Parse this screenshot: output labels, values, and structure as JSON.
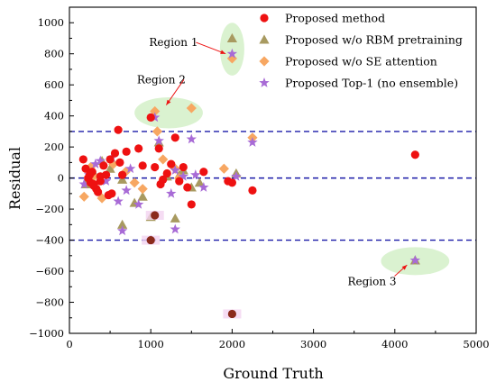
{
  "chart_data": {
    "type": "scatter",
    "xlabel": "Ground Truth",
    "ylabel": "Residual",
    "xlim": [
      0,
      5000
    ],
    "ylim": [
      -1000,
      1100
    ],
    "xticks": [
      0,
      1000,
      2000,
      3000,
      4000,
      5000
    ],
    "yticks": [
      -1000,
      -800,
      -600,
      -400,
      -200,
      0,
      200,
      400,
      600,
      800,
      1000
    ],
    "reference_lines": [
      300,
      0,
      -400
    ],
    "legend_position": "top-right",
    "series": [
      {
        "name": "Proposed method",
        "marker": "circle",
        "color": "#ee1111",
        "x": [
          170,
          200,
          230,
          260,
          280,
          300,
          330,
          350,
          380,
          420,
          450,
          480,
          520,
          560,
          600,
          650,
          700,
          850,
          900,
          1000,
          1050,
          1100,
          1120,
          1150,
          1250,
          1300,
          1350,
          1400,
          1450,
          1500,
          1650,
          1950,
          2000,
          2250,
          4250,
          1200,
          500,
          300,
          250,
          380,
          620
        ],
        "y": [
          120,
          60,
          0,
          -30,
          40,
          -50,
          -70,
          -90,
          10,
          80,
          20,
          -110,
          -100,
          160,
          310,
          20,
          170,
          190,
          80,
          390,
          70,
          190,
          -40,
          -10,
          90,
          260,
          -20,
          70,
          -60,
          -170,
          40,
          -20,
          -30,
          -80,
          150,
          30,
          120,
          -40,
          20,
          -20,
          100
        ]
      },
      {
        "name": "Proposed w/o RBM pretraining",
        "marker": "triangle",
        "color": "#a89a60",
        "x": [
          200,
          300,
          400,
          500,
          650,
          800,
          1000,
          1100,
          1300,
          1350,
          1400,
          1500,
          2000,
          2050,
          4250,
          650,
          900,
          1200,
          1600
        ],
        "y": [
          -40,
          30,
          110,
          60,
          -300,
          -160,
          -250,
          230,
          -260,
          20,
          50,
          -60,
          900,
          30,
          -530,
          -10,
          -120,
          10,
          -30
        ]
      },
      {
        "name": "Proposed w/o SE attention",
        "marker": "diamond",
        "color": "#f7a762",
        "x": [
          180,
          260,
          400,
          540,
          690,
          900,
          1050,
          1080,
          1300,
          1350,
          1500,
          1900,
          2000,
          2250,
          300,
          800,
          1150
        ],
        "y": [
          -120,
          70,
          -130,
          90,
          40,
          -70,
          430,
          300,
          60,
          0,
          450,
          60,
          770,
          260,
          10,
          -30,
          120
        ]
      },
      {
        "name": "Proposed Top-1 (no ensemble)",
        "marker": "star",
        "color": "#a86bd6",
        "x": [
          180,
          240,
          320,
          380,
          450,
          520,
          650,
          700,
          850,
          1000,
          1050,
          1100,
          1300,
          1300,
          1400,
          1500,
          1650,
          2000,
          2250,
          4250,
          600,
          750,
          1250,
          1550,
          2050
        ],
        "y": [
          -40,
          20,
          90,
          110,
          -20,
          130,
          -340,
          -80,
          -170,
          -400,
          390,
          240,
          -330,
          50,
          10,
          250,
          -60,
          800,
          230,
          -530,
          -150,
          60,
          -100,
          20,
          10
        ]
      }
    ],
    "overlap_points": {
      "color": "#8b2a1c",
      "x": [
        1050,
        1000,
        2000
      ],
      "y": [
        -240,
        -400,
        -875
      ]
    },
    "annotations": [
      {
        "label": "Region 1",
        "text_x": 980,
        "text_y": 850,
        "arrow_to_x": 1920,
        "arrow_to_y": 800,
        "ellipse_cx": 2000,
        "ellipse_cy": 830,
        "ellipse_rx": 150,
        "ellipse_ry": 170
      },
      {
        "label": "Region 2",
        "text_x": 830,
        "text_y": 610,
        "arrow_to_x": 1190,
        "arrow_to_y": 470,
        "ellipse_cx": 1220,
        "ellipse_cy": 420,
        "ellipse_rx": 420,
        "ellipse_ry": 100
      },
      {
        "label": "Region 3",
        "text_x": 3420,
        "text_y": -690,
        "arrow_to_x": 4150,
        "arrow_to_y": -560,
        "ellipse_cx": 4250,
        "ellipse_cy": -535,
        "ellipse_rx": 420,
        "ellipse_ry": 90
      }
    ],
    "grid": false
  }
}
